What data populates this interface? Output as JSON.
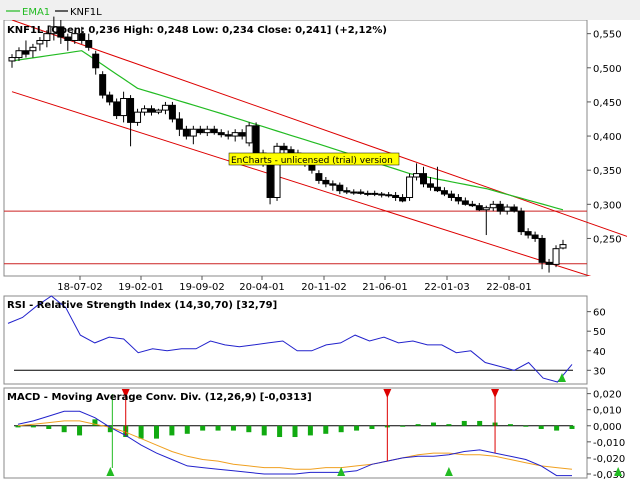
{
  "colors": {
    "ema": "#22bb22",
    "candle_up": "#ffffff",
    "candle_down": "#000000",
    "channel": "#dd0000",
    "hline": "#cc2222",
    "rsi": "#2222cc",
    "macd": "#2222cc",
    "signal": "#f0a020",
    "hist": "#11aa11",
    "arrow_up": "#22bb22",
    "arrow_down": "#dd0000",
    "watermark_bg": "#ffff00"
  },
  "legend": {
    "ema": "EMA1",
    "knf": "KNF1L"
  },
  "price_panel": {
    "header": "KNF1L [Open: 0,236  High: 0,248  Low: 0,234  Close: 0,241] (+2,12%)",
    "watermark": "EnCharts - unlicensed (trial) version",
    "y_ticks": [
      "0,550",
      "0,500",
      "0,450",
      "0,400",
      "0,350",
      "0,300",
      "0,250"
    ],
    "x_ticks": [
      "18-07-02",
      "19-02-01",
      "19-09-02",
      "20-04-01",
      "20-11-02",
      "21-06-01",
      "22-01-03",
      "22-08-01"
    ]
  },
  "rsi_panel": {
    "title": "RSI - Relative Strength Index (14,30,70) [32,79]",
    "y_ticks": [
      "60",
      "50",
      "40",
      "30"
    ]
  },
  "macd_panel": {
    "title": "MACD - Moving Average Conv. Div. (12,26,9) [-0,0313]",
    "y_ticks": [
      "0,020",
      "0,010",
      "0,000",
      "-0,010",
      "-0,020",
      "-0,030"
    ]
  },
  "chart_data": [
    {
      "type": "candlestick",
      "title": "KNF1L [Open: 0,236  High: 0,248  Low: 0,234  Close: 0,241] (+2,12%)",
      "y_range": [
        0.195,
        0.57
      ],
      "x_tick_labels": [
        "18-07-02",
        "19-02-01",
        "19-09-02",
        "20-04-01",
        "20-11-02",
        "21-06-01",
        "22-01-03",
        "22-08-01"
      ],
      "candles": [
        [
          0.51,
          0.52,
          0.5,
          0.515
        ],
        [
          0.515,
          0.53,
          0.51,
          0.525
        ],
        [
          0.525,
          0.54,
          0.515,
          0.52
        ],
        [
          0.525,
          0.535,
          0.515,
          0.53
        ],
        [
          0.535,
          0.545,
          0.525,
          0.54
        ],
        [
          0.54,
          0.555,
          0.53,
          0.55
        ],
        [
          0.55,
          0.575,
          0.54,
          0.56
        ],
        [
          0.56,
          0.57,
          0.535,
          0.545
        ],
        [
          0.545,
          0.55,
          0.525,
          0.54
        ],
        [
          0.54,
          0.555,
          0.535,
          0.55
        ],
        [
          0.55,
          0.56,
          0.535,
          0.54
        ],
        [
          0.54,
          0.55,
          0.525,
          0.53
        ],
        [
          0.52,
          0.525,
          0.49,
          0.5
        ],
        [
          0.49,
          0.495,
          0.455,
          0.46
        ],
        [
          0.46,
          0.465,
          0.445,
          0.45
        ],
        [
          0.45,
          0.455,
          0.425,
          0.43
        ],
        [
          0.43,
          0.465,
          0.42,
          0.455
        ],
        [
          0.455,
          0.46,
          0.385,
          0.42
        ],
        [
          0.42,
          0.44,
          0.415,
          0.435
        ],
        [
          0.435,
          0.445,
          0.43,
          0.44
        ],
        [
          0.44,
          0.445,
          0.43,
          0.435
        ],
        [
          0.435,
          0.44,
          0.432,
          0.438
        ],
        [
          0.438,
          0.45,
          0.432,
          0.445
        ],
        [
          0.445,
          0.45,
          0.42,
          0.425
        ],
        [
          0.425,
          0.435,
          0.4,
          0.41
        ],
        [
          0.41,
          0.415,
          0.395,
          0.4
        ],
        [
          0.4,
          0.415,
          0.388,
          0.41
        ],
        [
          0.41,
          0.415,
          0.402,
          0.405
        ],
        [
          0.405,
          0.415,
          0.4,
          0.41
        ],
        [
          0.41,
          0.415,
          0.402,
          0.405
        ],
        [
          0.405,
          0.41,
          0.398,
          0.402
        ],
        [
          0.402,
          0.408,
          0.395,
          0.4
        ],
        [
          0.4,
          0.41,
          0.392,
          0.405
        ],
        [
          0.405,
          0.41,
          0.395,
          0.4
        ],
        [
          0.39,
          0.42,
          0.385,
          0.415
        ],
        [
          0.415,
          0.42,
          0.37,
          0.375
        ],
        [
          0.375,
          0.38,
          0.355,
          0.36
        ],
        [
          0.36,
          0.365,
          0.3,
          0.31
        ],
        [
          0.31,
          0.39,
          0.305,
          0.385
        ],
        [
          0.385,
          0.39,
          0.375,
          0.38
        ],
        [
          0.38,
          0.385,
          0.37,
          0.375
        ],
        [
          0.375,
          0.38,
          0.365,
          0.372
        ],
        [
          0.372,
          0.375,
          0.355,
          0.36
        ],
        [
          0.36,
          0.365,
          0.345,
          0.35
        ],
        [
          0.345,
          0.35,
          0.33,
          0.335
        ],
        [
          0.335,
          0.34,
          0.325,
          0.33
        ],
        [
          0.33,
          0.335,
          0.32,
          0.328
        ],
        [
          0.328,
          0.332,
          0.315,
          0.32
        ],
        [
          0.32,
          0.325,
          0.315,
          0.318
        ],
        [
          0.318,
          0.322,
          0.314,
          0.318
        ],
        [
          0.318,
          0.322,
          0.314,
          0.316
        ],
        [
          0.316,
          0.32,
          0.312,
          0.316
        ],
        [
          0.316,
          0.32,
          0.312,
          0.315
        ],
        [
          0.315,
          0.318,
          0.31,
          0.314
        ],
        [
          0.314,
          0.318,
          0.31,
          0.313
        ],
        [
          0.313,
          0.318,
          0.305,
          0.31
        ],
        [
          0.31,
          0.315,
          0.303,
          0.305
        ],
        [
          0.31,
          0.345,
          0.305,
          0.34
        ],
        [
          0.34,
          0.36,
          0.335,
          0.345
        ],
        [
          0.345,
          0.355,
          0.325,
          0.33
        ],
        [
          0.33,
          0.34,
          0.32,
          0.325
        ],
        [
          0.325,
          0.355,
          0.318,
          0.32
        ],
        [
          0.32,
          0.325,
          0.312,
          0.315
        ],
        [
          0.315,
          0.32,
          0.305,
          0.31
        ],
        [
          0.31,
          0.315,
          0.3,
          0.305
        ],
        [
          0.305,
          0.31,
          0.298,
          0.3
        ],
        [
          0.3,
          0.305,
          0.296,
          0.298
        ],
        [
          0.298,
          0.302,
          0.29,
          0.292
        ],
        [
          0.292,
          0.298,
          0.255,
          0.295
        ],
        [
          0.295,
          0.305,
          0.29,
          0.3
        ],
        [
          0.3,
          0.305,
          0.285,
          0.29
        ],
        [
          0.29,
          0.3,
          0.285,
          0.296
        ],
        [
          0.296,
          0.3,
          0.288,
          0.29
        ],
        [
          0.29,
          0.295,
          0.255,
          0.26
        ],
        [
          0.26,
          0.265,
          0.25,
          0.255
        ],
        [
          0.255,
          0.26,
          0.245,
          0.25
        ],
        [
          0.25,
          0.255,
          0.205,
          0.215
        ],
        [
          0.215,
          0.22,
          0.2,
          0.212
        ],
        [
          0.212,
          0.24,
          0.208,
          0.235
        ],
        [
          0.236,
          0.248,
          0.234,
          0.241
        ]
      ],
      "ema_series": {
        "name": "EMA1",
        "anchors": [
          [
            0,
            0.51
          ],
          [
            10,
            0.525
          ],
          [
            18,
            0.47
          ],
          [
            30,
            0.433
          ],
          [
            45,
            0.385
          ],
          [
            57,
            0.345
          ],
          [
            68,
            0.323
          ],
          [
            79,
            0.292
          ]
        ]
      },
      "horizontal_lines": [
        0.29,
        0.213
      ],
      "channel_lines": [
        [
          [
            0,
            0.57
          ],
          [
            84,
            0.265
          ]
        ],
        [
          [
            0,
            0.465
          ],
          [
            84,
            0.19
          ]
        ]
      ]
    },
    {
      "type": "line",
      "title": "RSI - Relative Strength Index (14,30,70) [32,79]",
      "y_range": [
        23,
        68
      ],
      "reference_line": 30,
      "series": [
        {
          "name": "RSI",
          "values": [
            54,
            57,
            63,
            68,
            62,
            48,
            44,
            47,
            46,
            39,
            41,
            40,
            41,
            41,
            45,
            43,
            42,
            43,
            44,
            45,
            40,
            40,
            43,
            44,
            48,
            45,
            47,
            44,
            45,
            43,
            43,
            39,
            40,
            34,
            32,
            30,
            34,
            26,
            24,
            33
          ]
        }
      ],
      "signals_up": [
        39
      ]
    },
    {
      "type": "bar+line",
      "title": "MACD - Moving Average Conv. Div. (12,26,9) [-0,0313]",
      "y_range": [
        -0.0325,
        0.0235
      ],
      "macd": [
        0.001,
        0.003,
        0.006,
        0.009,
        0.009,
        0.005,
        -0.001,
        -0.006,
        -0.012,
        -0.017,
        -0.021,
        -0.025,
        -0.026,
        -0.027,
        -0.028,
        -0.029,
        -0.03,
        -0.03,
        -0.03,
        -0.029,
        -0.029,
        -0.029,
        -0.028,
        -0.024,
        -0.022,
        -0.02,
        -0.019,
        -0.019,
        -0.018,
        -0.016,
        -0.015,
        -0.017,
        -0.019,
        -0.021,
        -0.025,
        -0.031,
        -0.031
      ],
      "signal": [
        0.0,
        0.001,
        0.002,
        0.003,
        0.003,
        0.001,
        -0.001,
        -0.004,
        -0.008,
        -0.012,
        -0.016,
        -0.019,
        -0.021,
        -0.022,
        -0.024,
        -0.025,
        -0.026,
        -0.026,
        -0.027,
        -0.027,
        -0.026,
        -0.026,
        -0.025,
        -0.024,
        -0.022,
        -0.02,
        -0.018,
        -0.017,
        -0.017,
        -0.018,
        -0.018,
        -0.019,
        -0.021,
        -0.023,
        -0.025,
        -0.026,
        -0.027
      ],
      "histogram": [
        -0.001,
        -0.001,
        -0.002,
        -0.004,
        -0.006,
        0.004,
        -0.004,
        -0.007,
        -0.008,
        -0.008,
        -0.006,
        -0.005,
        -0.003,
        -0.003,
        -0.003,
        -0.004,
        -0.006,
        -0.007,
        -0.007,
        -0.006,
        -0.005,
        -0.004,
        -0.003,
        -0.002,
        -0.001,
        0.0,
        0.001,
        0.002,
        0.001,
        0.003,
        0.003,
        0.002,
        0.001,
        0.0,
        -0.002,
        -0.003,
        -0.002
      ],
      "signals_up": [
        6,
        21,
        28,
        39
      ],
      "signals_down": [
        7,
        24,
        31
      ]
    }
  ]
}
